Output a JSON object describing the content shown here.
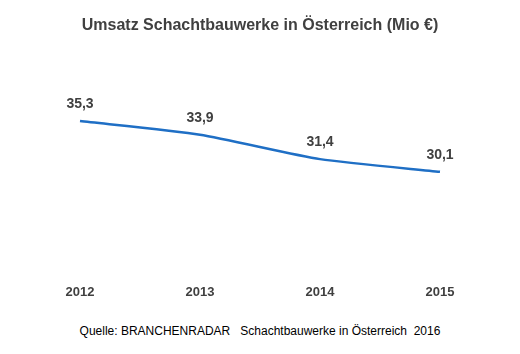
{
  "chart_data": {
    "type": "line",
    "title": "Umsatz Schachtbauwerke in Österreich (Mio €)",
    "categories": [
      "2012",
      "2013",
      "2014",
      "2015"
    ],
    "values": [
      35.3,
      33.9,
      31.4,
      30.1
    ],
    "value_labels": [
      "35,3",
      "33,9",
      "31,4",
      "30,1"
    ],
    "color": "#1f6fc5",
    "ylim": [
      20,
      40
    ],
    "grid": false,
    "data_labels": true,
    "tick_labels": "x",
    "marker": "none",
    "annotation": "Quelle: BRANCHENRADAR   Schachtbauwerke in Österreich  2016"
  }
}
